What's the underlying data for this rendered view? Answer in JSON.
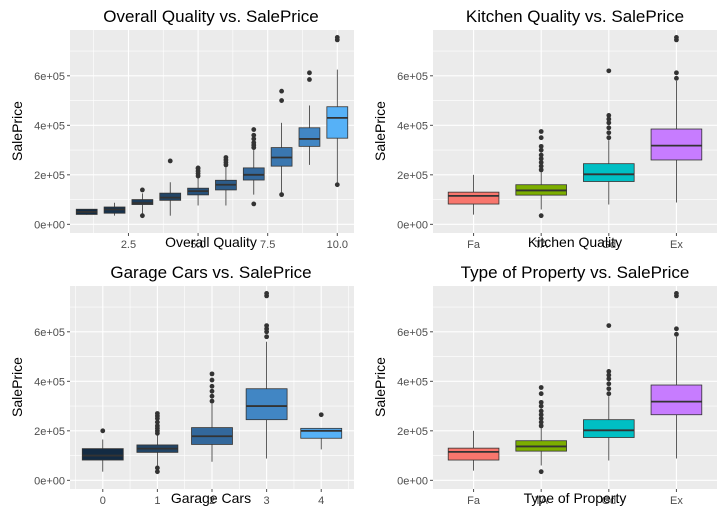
{
  "chart_data": [
    {
      "type": "box",
      "title": "Overall Quality vs. SalePrice",
      "xlabel": "Overall Quality",
      "ylabel": "SalePrice",
      "x_numeric": true,
      "xlim": [
        0.4,
        10.6
      ],
      "xticks": [
        2.5,
        5.0,
        7.5,
        10.0
      ],
      "xtick_labels": [
        "2.5",
        "5.0",
        "7.5",
        "10.0"
      ],
      "ylim": [
        -35000,
        785000
      ],
      "yticks": [
        0,
        200000,
        400000,
        600000
      ],
      "ytick_labels": [
        "0e+00",
        "2e+05",
        "4e+05",
        "6e+05"
      ],
      "boxes": [
        {
          "x": 1,
          "color": "#132B43",
          "min": 39000,
          "q1": 40000,
          "median": 50000,
          "q3": 61000,
          "max": 61000,
          "outliers": []
        },
        {
          "x": 2,
          "color": "#17324D",
          "min": 35000,
          "q1": 45000,
          "median": 60000,
          "q3": 70000,
          "max": 87000,
          "outliers": []
        },
        {
          "x": 3,
          "color": "#1C3B59",
          "min": 39000,
          "q1": 80000,
          "median": 86000,
          "q3": 100000,
          "max": 125000,
          "outliers": [
            35000,
            139000
          ]
        },
        {
          "x": 4,
          "color": "#224566",
          "min": 35000,
          "q1": 97000,
          "median": 108000,
          "q3": 126000,
          "max": 170000,
          "outliers": [
            256000
          ]
        },
        {
          "x": 5,
          "color": "#27517A",
          "min": 76000,
          "q1": 119000,
          "median": 134000,
          "q3": 146000,
          "max": 188000,
          "outliers": [
            195000,
            205000,
            215000,
            225000,
            228000
          ]
        },
        {
          "x": 6,
          "color": "#2D5C8A",
          "min": 76000,
          "q1": 139000,
          "median": 160000,
          "q3": 178000,
          "max": 230000,
          "outliers": [
            240000,
            250000,
            260000,
            270000
          ]
        },
        {
          "x": 7,
          "color": "#33689C",
          "min": 120000,
          "q1": 179000,
          "median": 200000,
          "q3": 228000,
          "max": 300000,
          "outliers": [
            82500,
            310000,
            320000,
            330000,
            345000,
            360000,
            383000
          ]
        },
        {
          "x": 8,
          "color": "#3A77B0",
          "min": 122000,
          "q1": 235000,
          "median": 270000,
          "q3": 310000,
          "max": 410000,
          "outliers": [
            120000,
            500000,
            538000
          ]
        },
        {
          "x": 9,
          "color": "#4186C4",
          "min": 240000,
          "q1": 315000,
          "median": 345000,
          "q3": 390000,
          "max": 480000,
          "outliers": [
            585000,
            612000
          ]
        },
        {
          "x": 10,
          "color": "#56B1F7",
          "min": 160000,
          "q1": 348000,
          "median": 430000,
          "q3": 475000,
          "max": 625000,
          "outliers": [
            160000,
            745000,
            755000
          ]
        }
      ]
    },
    {
      "type": "box",
      "title": "Kitchen Quality vs. SalePrice",
      "xlabel": "Kitchen Quality",
      "ylabel": "SalePrice",
      "categories": [
        "Fa",
        "TA",
        "Gd",
        "Ex"
      ],
      "ylim": [
        -35000,
        785000
      ],
      "yticks": [
        0,
        200000,
        400000,
        600000
      ],
      "ytick_labels": [
        "0e+00",
        "2e+05",
        "4e+05",
        "6e+05"
      ],
      "boxes": [
        {
          "x": 1,
          "color": "#F8766D",
          "min": 39000,
          "q1": 82000,
          "median": 115000,
          "q3": 130000,
          "max": 200000,
          "outliers": []
        },
        {
          "x": 2,
          "color": "#7CAE00",
          "min": 60000,
          "q1": 118000,
          "median": 137000,
          "q3": 160000,
          "max": 215000,
          "outliers": [
            35000,
            220000,
            235000,
            250000,
            265000,
            280000,
            300000,
            315000,
            350000,
            375000
          ]
        },
        {
          "x": 3,
          "color": "#00BFC4",
          "min": 80000,
          "q1": 173000,
          "median": 202000,
          "q3": 245000,
          "max": 340000,
          "outliers": [
            350000,
            370000,
            390000,
            410000,
            425000,
            440000,
            620000
          ]
        },
        {
          "x": 4,
          "color": "#C77CFF",
          "min": 88000,
          "q1": 260000,
          "median": 318000,
          "q3": 385000,
          "max": 580000,
          "outliers": [
            590000,
            612000,
            745000,
            755000
          ]
        }
      ]
    },
    {
      "type": "box",
      "title": "Garage Cars vs. SalePrice",
      "xlabel": "Garage Cars",
      "ylabel": "SalePrice",
      "x_numeric": true,
      "xlim": [
        -0.6,
        4.6
      ],
      "xticks": [
        0,
        1,
        2,
        3,
        4
      ],
      "xtick_labels": [
        "0",
        "1",
        "2",
        "3",
        "4"
      ],
      "ylim": [
        -35000,
        785000
      ],
      "yticks": [
        0,
        200000,
        400000,
        600000
      ],
      "ytick_labels": [
        "0e+00",
        "2e+05",
        "4e+05",
        "6e+05"
      ],
      "boxes": [
        {
          "x": 0,
          "color": "#132B43",
          "min": 35000,
          "q1": 82000,
          "median": 100000,
          "q3": 128000,
          "max": 165000,
          "outliers": [
            200000
          ]
        },
        {
          "x": 1,
          "color": "#224566",
          "min": 60000,
          "q1": 113000,
          "median": 128000,
          "q3": 143000,
          "max": 185000,
          "outliers": [
            35000,
            50000,
            190000,
            200000,
            210000,
            220000,
            235000,
            250000,
            260000,
            270000
          ]
        },
        {
          "x": 2,
          "color": "#33689C",
          "min": 75000,
          "q1": 145000,
          "median": 178000,
          "q3": 213000,
          "max": 310000,
          "outliers": [
            320000,
            340000,
            360000,
            380000,
            405000,
            430000
          ]
        },
        {
          "x": 3,
          "color": "#4186C4",
          "min": 88000,
          "q1": 245000,
          "median": 300000,
          "q3": 370000,
          "max": 560000,
          "outliers": [
            580000,
            600000,
            612000,
            625000,
            745000,
            755000
          ]
        },
        {
          "x": 4,
          "color": "#56B1F7",
          "min": 125000,
          "q1": 170000,
          "median": 200000,
          "q3": 210000,
          "max": 210000,
          "outliers": [
            265000
          ]
        }
      ]
    },
    {
      "type": "box",
      "title": "Type of Property vs. SalePrice",
      "xlabel": "Type of Property",
      "ylabel": "SalePrice",
      "categories": [
        "Fa",
        "TA",
        "Gd",
        "Ex"
      ],
      "ylim": [
        -35000,
        785000
      ],
      "yticks": [
        0,
        200000,
        400000,
        600000
      ],
      "ytick_labels": [
        "0e+00",
        "2e+05",
        "4e+05",
        "6e+05"
      ],
      "boxes": [
        {
          "x": 1,
          "color": "#F8766D",
          "min": 39000,
          "q1": 82000,
          "median": 115000,
          "q3": 130000,
          "max": 200000,
          "outliers": []
        },
        {
          "x": 2,
          "color": "#7CAE00",
          "min": 60000,
          "q1": 118000,
          "median": 137000,
          "q3": 160000,
          "max": 215000,
          "outliers": [
            35000,
            220000,
            235000,
            250000,
            265000,
            280000,
            300000,
            315000,
            350000,
            375000
          ]
        },
        {
          "x": 3,
          "color": "#00BFC4",
          "min": 80000,
          "q1": 173000,
          "median": 202000,
          "q3": 245000,
          "max": 340000,
          "outliers": [
            350000,
            370000,
            390000,
            410000,
            425000,
            440000,
            625000
          ]
        },
        {
          "x": 4,
          "color": "#C77CFF",
          "min": 88000,
          "q1": 265000,
          "median": 318000,
          "q3": 385000,
          "max": 580000,
          "outliers": [
            590000,
            612000,
            745000,
            755000
          ]
        }
      ]
    }
  ],
  "colors": {
    "panel_bg": "#EBEBEB",
    "grid_major": "#FFFFFF",
    "box_outline": "#333333",
    "outlier": "#333333",
    "tick_text": "#4D4D4D"
  }
}
